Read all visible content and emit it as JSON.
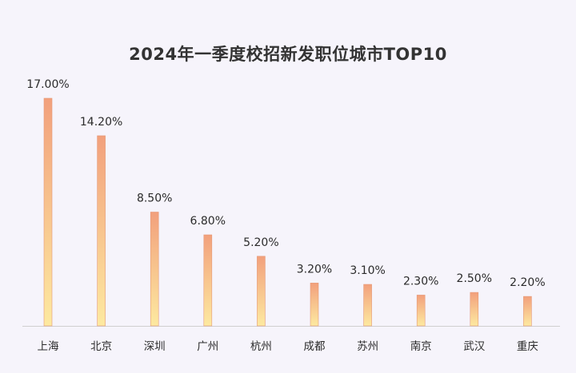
{
  "chart_data": {
    "type": "bar",
    "title": "2024年一季度校招新发职位城市TOP10",
    "categories": [
      "上海",
      "北京",
      "深圳",
      "广州",
      "杭州",
      "成都",
      "苏州",
      "南京",
      "武汉",
      "重庆"
    ],
    "values": [
      17.0,
      14.2,
      8.5,
      6.8,
      5.2,
      3.2,
      3.1,
      2.3,
      2.5,
      2.2
    ],
    "data_labels": [
      "17.00%",
      "14.20%",
      "8.50%",
      "6.80%",
      "5.20%",
      "3.20%",
      "3.10%",
      "2.30%",
      "2.50%",
      "2.20%"
    ],
    "xlabel": "",
    "ylabel": "",
    "ylim": [
      0,
      17
    ],
    "grid": false,
    "legend": "none",
    "colors": {
      "bar_top": "#f2a07c",
      "bar_bottom": "#fde9a0",
      "bar_stroke": "#e59a78",
      "axis": "#cfcfcf",
      "background": "#f6f4fb"
    }
  }
}
